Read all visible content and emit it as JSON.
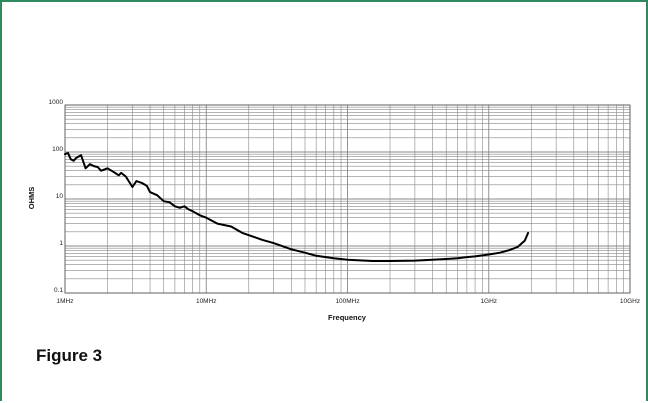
{
  "figure": {
    "caption": "Figure 3"
  },
  "chart_data": {
    "type": "line",
    "title": "",
    "xlabel": "Frequency",
    "ylabel": "OHMS",
    "x_scale": "log",
    "y_scale": "log",
    "xlim": [
      1,
      10000
    ],
    "ylim": [
      0.1,
      1000
    ],
    "x_units": "MHz",
    "y_units": "ohms",
    "grid": true,
    "legend": "none",
    "x_ticks": [
      {
        "value": 1,
        "label": "1MHz"
      },
      {
        "value": 10,
        "label": "10MHz"
      },
      {
        "value": 100,
        "label": "100MHz"
      },
      {
        "value": 1000,
        "label": "1GHz"
      },
      {
        "value": 10000,
        "label": "10GHz"
      }
    ],
    "y_ticks": [
      {
        "value": 0.1,
        "label": "0.1"
      },
      {
        "value": 1,
        "label": "1"
      },
      {
        "value": 10,
        "label": "10"
      },
      {
        "value": 100,
        "label": "100"
      },
      {
        "value": 1000,
        "label": "1000"
      }
    ],
    "line_color": "#000000",
    "grid_color": "#888888",
    "series": [
      {
        "x": [
          1,
          1.05,
          1.1,
          1.15,
          1.2,
          1.3,
          1.4,
          1.5,
          1.6,
          1.7,
          1.8,
          2.0,
          2.2,
          2.4,
          2.5,
          2.7,
          3.0,
          3.2,
          3.5,
          3.8,
          4.0,
          4.5,
          5.0,
          5.5,
          6.0,
          6.5,
          7.0,
          7.5,
          8.0,
          9.0,
          10,
          12,
          15,
          18,
          20,
          25,
          30,
          40,
          50,
          60,
          80,
          100,
          150,
          200,
          300,
          400,
          500,
          600,
          700,
          800,
          1000,
          1200,
          1400,
          1600,
          1800,
          1900
        ],
        "y": [
          90,
          95,
          70,
          65,
          75,
          85,
          45,
          55,
          50,
          48,
          40,
          45,
          38,
          32,
          36,
          30,
          18,
          24,
          22,
          19,
          14,
          12,
          9,
          8.5,
          7,
          6.5,
          7,
          6,
          5.5,
          4.5,
          4,
          3,
          2.6,
          1.9,
          1.7,
          1.35,
          1.15,
          0.85,
          0.72,
          0.62,
          0.55,
          0.51,
          0.48,
          0.48,
          0.49,
          0.51,
          0.53,
          0.55,
          0.58,
          0.6,
          0.66,
          0.72,
          0.82,
          0.95,
          1.3,
          1.9
        ]
      }
    ]
  }
}
